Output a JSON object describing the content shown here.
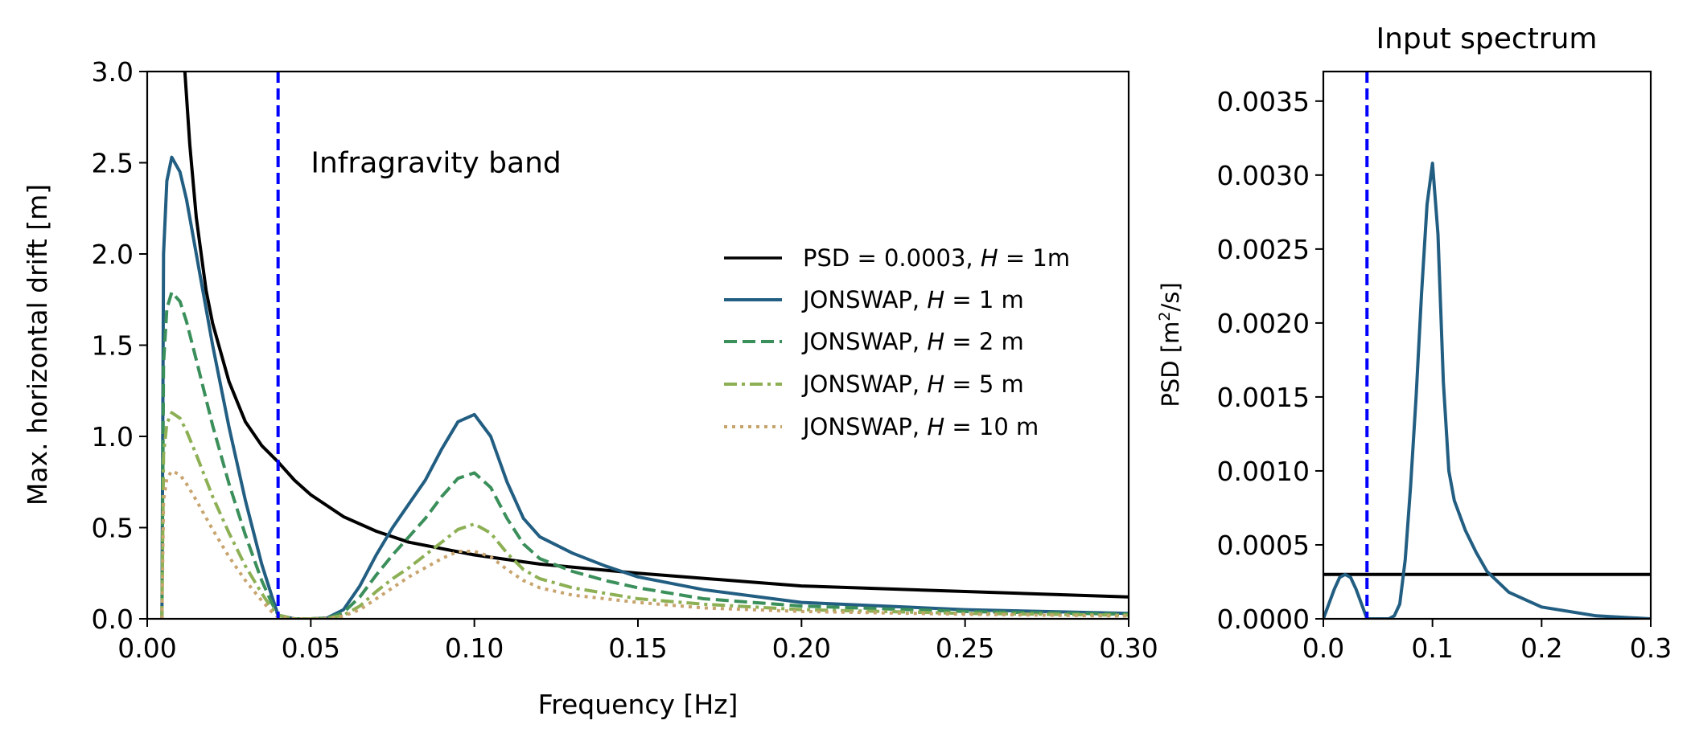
{
  "chart_data": [
    {
      "type": "line",
      "title": "",
      "xlabel": "Frequency [Hz]",
      "ylabel": "Max. horizontal drift [m]",
      "xlim": [
        0.0,
        0.3
      ],
      "ylim": [
        0.0,
        3.0
      ],
      "xticks": [
        0.0,
        0.05,
        0.1,
        0.15,
        0.2,
        0.25,
        0.3
      ],
      "xtick_labels": [
        "0.00",
        "0.05",
        "0.10",
        "0.15",
        "0.20",
        "0.25",
        "0.30"
      ],
      "yticks": [
        0.0,
        0.5,
        1.0,
        1.5,
        2.0,
        2.5,
        3.0
      ],
      "ytick_labels": [
        "0.0",
        "0.5",
        "1.0",
        "1.5",
        "2.0",
        "2.5",
        "3.0"
      ],
      "grid": false,
      "legend_position": "center-right",
      "annotation": {
        "text": "Infragravity band",
        "x": 0.05,
        "y": 2.5
      },
      "vline": {
        "x": 0.04,
        "color": "#0000ff",
        "style": "dashed"
      },
      "series": [
        {
          "name": "psd_flat",
          "legend_prefix": "PSD = 0.0003, ",
          "legend_var": "H",
          "legend_suffix": " = 1m",
          "color": "#000000",
          "dash": "solid",
          "x": [
            0.0115,
            0.013,
            0.015,
            0.018,
            0.02,
            0.025,
            0.03,
            0.035,
            0.04,
            0.045,
            0.05,
            0.06,
            0.07,
            0.08,
            0.1,
            0.12,
            0.15,
            0.2,
            0.25,
            0.3
          ],
          "y": [
            3.0,
            2.6,
            2.2,
            1.8,
            1.62,
            1.3,
            1.08,
            0.95,
            0.86,
            0.76,
            0.68,
            0.56,
            0.48,
            0.42,
            0.35,
            0.3,
            0.25,
            0.18,
            0.15,
            0.12
          ]
        },
        {
          "name": "jonswap_h1",
          "legend_prefix": "JONSWAP, ",
          "legend_var": "H",
          "legend_suffix": " = 1 m",
          "color": "#225e82",
          "dash": "solid",
          "x": [
            0.0045,
            0.005,
            0.006,
            0.0075,
            0.01,
            0.012,
            0.015,
            0.02,
            0.025,
            0.03,
            0.035,
            0.038,
            0.04,
            0.045,
            0.05,
            0.055,
            0.06,
            0.065,
            0.07,
            0.075,
            0.08,
            0.085,
            0.09,
            0.095,
            0.1,
            0.105,
            0.11,
            0.115,
            0.12,
            0.13,
            0.14,
            0.15,
            0.17,
            0.2,
            0.25,
            0.3
          ],
          "y": [
            0.0,
            2.0,
            2.4,
            2.53,
            2.45,
            2.3,
            2.0,
            1.5,
            1.05,
            0.65,
            0.3,
            0.13,
            0.02,
            0.0,
            0.0,
            0.005,
            0.05,
            0.18,
            0.35,
            0.5,
            0.63,
            0.76,
            0.93,
            1.08,
            1.12,
            1.0,
            0.75,
            0.55,
            0.45,
            0.36,
            0.29,
            0.23,
            0.16,
            0.09,
            0.05,
            0.03
          ]
        },
        {
          "name": "jonswap_h2",
          "legend_prefix": "JONSWAP, ",
          "legend_var": "H",
          "legend_suffix": " = 2 m",
          "color": "#3a8f5a",
          "dash": "dashed",
          "x": [
            0.0045,
            0.005,
            0.006,
            0.0075,
            0.01,
            0.012,
            0.015,
            0.02,
            0.025,
            0.03,
            0.035,
            0.038,
            0.04,
            0.045,
            0.05,
            0.055,
            0.06,
            0.065,
            0.07,
            0.075,
            0.08,
            0.085,
            0.09,
            0.095,
            0.1,
            0.105,
            0.11,
            0.115,
            0.12,
            0.13,
            0.14,
            0.15,
            0.17,
            0.2,
            0.25,
            0.3
          ],
          "y": [
            0.0,
            1.4,
            1.7,
            1.79,
            1.74,
            1.63,
            1.42,
            1.06,
            0.74,
            0.46,
            0.21,
            0.09,
            0.02,
            0.0,
            0.0,
            0.003,
            0.035,
            0.12,
            0.24,
            0.35,
            0.45,
            0.55,
            0.67,
            0.77,
            0.8,
            0.72,
            0.55,
            0.41,
            0.33,
            0.26,
            0.21,
            0.17,
            0.11,
            0.07,
            0.04,
            0.025
          ]
        },
        {
          "name": "jonswap_h5",
          "legend_prefix": "JONSWAP, ",
          "legend_var": "H",
          "legend_suffix": " = 5 m",
          "color": "#8db055",
          "dash": "dashdot",
          "x": [
            0.0045,
            0.005,
            0.006,
            0.0075,
            0.01,
            0.012,
            0.015,
            0.02,
            0.025,
            0.03,
            0.035,
            0.038,
            0.04,
            0.045,
            0.05,
            0.055,
            0.06,
            0.065,
            0.07,
            0.075,
            0.08,
            0.085,
            0.09,
            0.095,
            0.1,
            0.105,
            0.11,
            0.115,
            0.12,
            0.13,
            0.14,
            0.15,
            0.17,
            0.2,
            0.25,
            0.3
          ],
          "y": [
            0.0,
            0.9,
            1.07,
            1.13,
            1.1,
            1.03,
            0.9,
            0.67,
            0.47,
            0.29,
            0.14,
            0.06,
            0.02,
            0.0,
            0.0,
            0.002,
            0.02,
            0.07,
            0.15,
            0.22,
            0.28,
            0.35,
            0.42,
            0.49,
            0.52,
            0.47,
            0.36,
            0.27,
            0.22,
            0.17,
            0.14,
            0.11,
            0.08,
            0.05,
            0.03,
            0.02
          ]
        },
        {
          "name": "jonswap_h10",
          "legend_prefix": "JONSWAP, ",
          "legend_var": "H",
          "legend_suffix": " = 10 m",
          "color": "#c8a46e",
          "dash": "dotted",
          "x": [
            0.0045,
            0.005,
            0.006,
            0.0075,
            0.01,
            0.012,
            0.015,
            0.02,
            0.025,
            0.03,
            0.035,
            0.038,
            0.04,
            0.045,
            0.05,
            0.055,
            0.06,
            0.065,
            0.07,
            0.075,
            0.08,
            0.085,
            0.09,
            0.095,
            0.1,
            0.105,
            0.11,
            0.115,
            0.12,
            0.13,
            0.14,
            0.15,
            0.17,
            0.2,
            0.25,
            0.3
          ],
          "y": [
            0.0,
            0.65,
            0.77,
            0.81,
            0.79,
            0.74,
            0.65,
            0.49,
            0.34,
            0.21,
            0.1,
            0.04,
            0.01,
            0.0,
            0.0,
            0.002,
            0.015,
            0.05,
            0.11,
            0.17,
            0.23,
            0.28,
            0.33,
            0.37,
            0.37,
            0.34,
            0.27,
            0.21,
            0.17,
            0.13,
            0.11,
            0.09,
            0.06,
            0.04,
            0.025,
            0.015
          ]
        }
      ]
    },
    {
      "type": "line",
      "title": "Input spectrum",
      "xlabel": "",
      "ylabel_prefix": "PSD [m",
      "ylabel_sup": "2",
      "ylabel_suffix": "/s]",
      "xlim": [
        0.0,
        0.3
      ],
      "ylim": [
        0.0,
        0.0037
      ],
      "xticks": [
        0.0,
        0.1,
        0.2,
        0.3
      ],
      "xtick_labels": [
        "0.0",
        "0.1",
        "0.2",
        "0.3"
      ],
      "yticks": [
        0.0,
        0.0005,
        0.001,
        0.0015,
        0.002,
        0.0025,
        0.003,
        0.0035
      ],
      "ytick_labels": [
        "0.0000",
        "0.0005",
        "0.0010",
        "0.0015",
        "0.0020",
        "0.0025",
        "0.0030",
        "0.0035"
      ],
      "grid": false,
      "vline": {
        "x": 0.04,
        "color": "#0000ff",
        "style": "dashed"
      },
      "series": [
        {
          "name": "flat_psd",
          "color": "#000000",
          "dash": "solid",
          "x": [
            0.0,
            0.3
          ],
          "y": [
            0.0003,
            0.0003
          ]
        },
        {
          "name": "jonswap_spectrum",
          "color": "#225e82",
          "dash": "solid",
          "x": [
            0.0,
            0.005,
            0.01,
            0.015,
            0.02,
            0.025,
            0.03,
            0.035,
            0.04,
            0.05,
            0.06,
            0.065,
            0.07,
            0.075,
            0.08,
            0.085,
            0.09,
            0.095,
            0.1,
            0.105,
            0.11,
            0.115,
            0.12,
            0.13,
            0.14,
            0.15,
            0.17,
            0.2,
            0.25,
            0.3
          ],
          "y": [
            0.0,
            0.0001,
            0.0002,
            0.00028,
            0.0003,
            0.00028,
            0.0002,
            0.0001,
            0.0,
            0.0,
            0.0,
            2e-05,
            0.0001,
            0.0004,
            0.0009,
            0.0015,
            0.0022,
            0.0028,
            0.00308,
            0.0026,
            0.0016,
            0.001,
            0.0008,
            0.0006,
            0.00045,
            0.00032,
            0.00018,
            8e-05,
            2e-05,
            0.0
          ]
        }
      ]
    }
  ]
}
